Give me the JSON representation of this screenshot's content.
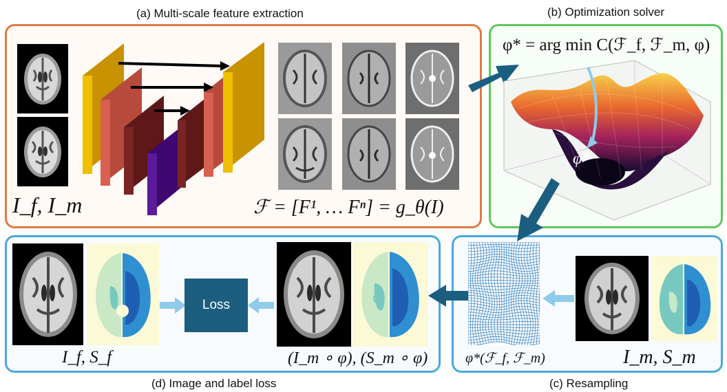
{
  "panels": {
    "a": {
      "title": "(a) Multi-scale feature extraction",
      "input_label": "I_f, I_m",
      "formula": "ℱ = [F¹, … Fⁿ] = g_θ(I)",
      "border": "#e07b45"
    },
    "b": {
      "title": "(b) Optimization solver",
      "formula": "φ* = arg min C(ℱ_f, ℱ_m, φ)",
      "minimum_label": "φ*",
      "border": "#5cc95c"
    },
    "c": {
      "title": "(c) Resampling",
      "field_label": "φ*(ℱ_f, ℱ_m)",
      "input_label": "I_m, S_m",
      "border": "#4aa8dc"
    },
    "d": {
      "title": "(d) Image and label loss",
      "fixed_label": "I_f, S_f",
      "warped_label": "(I_m ∘ φ), (S_m ∘ φ)",
      "loss_label": "Loss",
      "border": "#4aa8dc"
    }
  },
  "colors": {
    "arrow_dark": "#1b5e80",
    "arrow_light": "#8fcaea",
    "encoder": [
      "#e8b000",
      "#cc5a4a",
      "#6e1e1e",
      "#4a0a80"
    ],
    "segmentation": [
      "#1f5fb3",
      "#2f8fd0",
      "#77c9c0",
      "#c8e8c6"
    ]
  }
}
